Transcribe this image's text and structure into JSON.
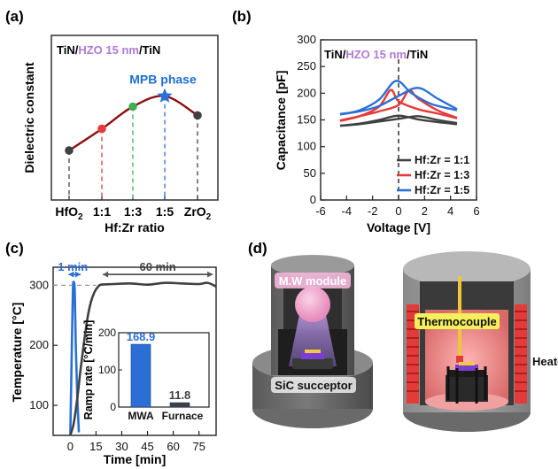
{
  "panel_labels": {
    "a": "(a)",
    "b": "(b)",
    "c": "(c)",
    "d": "(d)"
  },
  "colors": {
    "series_dark": "#404040",
    "series_red": "#e8393a",
    "series_blue": "#2b6fd6",
    "hzo_purple": "#b07ad6",
    "curve_darkred": "#8b0f0f",
    "blue_accent": "#1f6fd1",
    "green_dot": "#3fae54",
    "pink_module": "#f2a1c9",
    "red_coil": "#e53a3a"
  },
  "chart_data": [
    {
      "panel": "a",
      "type": "line",
      "title": "",
      "stack": {
        "t1": "TiN/",
        "t2": "HZO 15 nm",
        "t3": "/TiN"
      },
      "xlabel": "Hf:Zr ratio",
      "ylabel": "Dielectric constant",
      "categories": [
        {
          "main": "HfO",
          "sub": "2"
        },
        {
          "main": "1:1",
          "sub": ""
        },
        {
          "main": "1:3",
          "sub": ""
        },
        {
          "main": "1:5",
          "sub": ""
        },
        {
          "main": "ZrO",
          "sub": "2"
        }
      ],
      "values": [
        0.0,
        0.37,
        0.75,
        0.93,
        0.6
      ],
      "point_colors": [
        "#404040",
        "#e8393a",
        "#3fae54",
        "#2b6fd6",
        "#404040"
      ],
      "point_markers": [
        "circle",
        "circle",
        "circle",
        "star",
        "circle"
      ],
      "annotation": "MPB phase",
      "grid": false
    },
    {
      "panel": "b",
      "type": "line",
      "title": "",
      "stack": {
        "t1": "TiN/",
        "t2": "HZO 15 nm",
        "t3": "/TiN"
      },
      "xlabel": "Voltage [V]",
      "ylabel": "Capacitance [pF]",
      "xlim": [
        -6,
        6
      ],
      "ylim": [
        0,
        300
      ],
      "xticks": [
        -6,
        -4,
        -2,
        0,
        2,
        4,
        6
      ],
      "yticks": [
        0,
        50,
        100,
        150,
        200,
        250,
        300
      ],
      "legend_position": "bottom-right",
      "series": [
        {
          "name": "Hf:Zr = 1:1",
          "color": "#404040",
          "up": [
            [
              -4.5,
              139
            ],
            [
              -3,
              143
            ],
            [
              -1.5,
              150
            ],
            [
              0,
              158
            ],
            [
              1.5,
              151
            ],
            [
              3,
              146
            ],
            [
              4.5,
              142
            ]
          ],
          "down": [
            [
              -4.5,
              139
            ],
            [
              -3,
              142
            ],
            [
              -1.5,
              147
            ],
            [
              0,
              152
            ],
            [
              1.5,
              157
            ],
            [
              3,
              150
            ],
            [
              4.5,
              144
            ]
          ]
        },
        {
          "name": "Hf:Zr = 1:3",
          "color": "#e8393a",
          "up": [
            [
              -4.5,
              148
            ],
            [
              -3,
              157
            ],
            [
              -1.5,
              175
            ],
            [
              -0.6,
              206
            ],
            [
              0,
              185
            ],
            [
              1.5,
              170
            ],
            [
              3,
              162
            ],
            [
              4.5,
              153
            ]
          ],
          "down": [
            [
              -4.5,
              149
            ],
            [
              -3,
              157
            ],
            [
              -1.5,
              166
            ],
            [
              0,
              178
            ],
            [
              0.8,
              205
            ],
            [
              1.5,
              190
            ],
            [
              3,
              168
            ],
            [
              4.5,
              154
            ]
          ]
        },
        {
          "name": "Hf:Zr = 1:5",
          "color": "#2b6fd6",
          "up": [
            [
              -4.5,
              160
            ],
            [
              -3,
              168
            ],
            [
              -1.5,
              188
            ],
            [
              -0.2,
              223
            ],
            [
              1,
              200
            ],
            [
              2.5,
              180
            ],
            [
              4.5,
              168
            ]
          ],
          "down": [
            [
              -4.5,
              161
            ],
            [
              -3,
              166
            ],
            [
              -1.5,
              176
            ],
            [
              0,
              195
            ],
            [
              1.5,
              210
            ],
            [
              3,
              190
            ],
            [
              4.5,
              170
            ]
          ]
        }
      ]
    },
    {
      "panel": "c",
      "type": "line",
      "title": "",
      "xlabel": "Time [min]",
      "ylabel": "Temperature [°C]",
      "xlim": [
        -10,
        85
      ],
      "ylim": [
        50,
        330
      ],
      "xticks": [
        0,
        15,
        30,
        45,
        60,
        75
      ],
      "yticks": [
        100,
        200,
        300
      ],
      "annotations": {
        "mwa": "1 min",
        "furnace": "60 min"
      },
      "series": [
        {
          "name": "",
          "color": "#2b6fd6",
          "points": [
            [
              0,
              50
            ],
            [
              0.8,
              180
            ],
            [
              1.5,
              290
            ],
            [
              2,
              305
            ],
            [
              2.6,
              290
            ],
            [
              3.2,
              200
            ],
            [
              4,
              120
            ],
            [
              5,
              55
            ]
          ]
        },
        {
          "name": "",
          "color": "#404040",
          "points": [
            [
              0,
              50
            ],
            [
              2,
              70
            ],
            [
              4,
              110
            ],
            [
              6,
              160
            ],
            [
              8,
              205
            ],
            [
              10,
              245
            ],
            [
              12,
              272
            ],
            [
              14,
              288
            ],
            [
              16,
              297
            ],
            [
              18,
              301
            ],
            [
              25,
              302
            ],
            [
              35,
              303
            ],
            [
              45,
              301
            ],
            [
              55,
              304
            ],
            [
              65,
              303
            ],
            [
              75,
              302
            ],
            [
              80,
              304
            ],
            [
              85,
              298
            ]
          ]
        }
      ],
      "inset": {
        "type": "bar",
        "ylabel": "Ramp rate [°C/min]",
        "ylim": [
          0,
          200
        ],
        "yticks": [
          0,
          100,
          200
        ],
        "categories": [
          "MWA",
          "Furnace"
        ],
        "values": [
          168.9,
          11.8
        ],
        "value_labels": [
          "168.9",
          "11.8"
        ],
        "colors": [
          "#2b6fd6",
          "#404040"
        ]
      }
    }
  ],
  "panel_d": {
    "labels": {
      "mw": "M.W module",
      "sic": "SiC succeptor",
      "thermo": "Thermocouple",
      "heater": "Heater"
    }
  }
}
